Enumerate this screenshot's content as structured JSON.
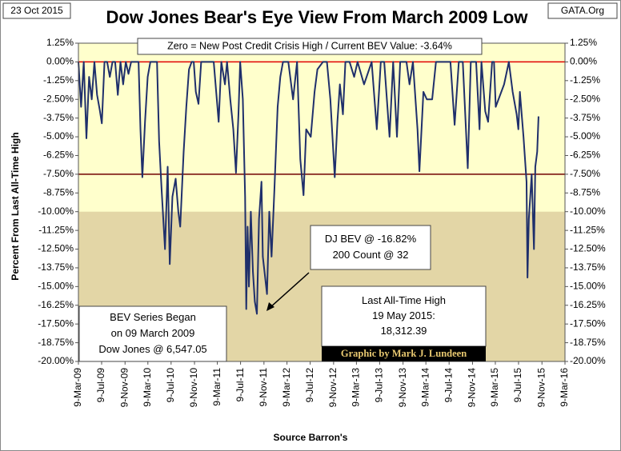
{
  "chart_data": {
    "type": "line",
    "title": "Dow Jones Bear's Eye View From March 2009 Low",
    "date_label": "23 Oct 2015",
    "site_label": "GATA.Org",
    "note": "Zero = New Post Credit Crisis High / Current BEV Value:  -3.64%",
    "callout": [
      "DJ BEV @ -16.82%",
      "200 Count @ 32"
    ],
    "start_note": [
      "BEV Series Began",
      "on 09 March 2009",
      "Dow Jones @ 6,547.05"
    ],
    "high_note": [
      "Last All-Time High",
      "19 May 2015:",
      "18,312.39"
    ],
    "credit": "Graphic by Mark J. Lundeen",
    "x_label": "Source Barron's",
    "y_label": "Percent From Last All-Time High",
    "color": "#1f2f6b",
    "reference_lines": [
      {
        "value": 0,
        "color": "#e00000"
      },
      {
        "value": -7.5,
        "color": "#700000"
      }
    ],
    "shaded_below": {
      "value": -10,
      "color": "#e3d6a6"
    },
    "background": "#ffffcc",
    "xlim": [
      "2009-03-09",
      "2016-03-09"
    ],
    "xticks": [
      {
        "value": "2009-03-09",
        "label": "9-Mar-09"
      },
      {
        "value": "2009-07-09",
        "label": "9-Jul-09"
      },
      {
        "value": "2009-11-09",
        "label": "9-Nov-09"
      },
      {
        "value": "2010-03-09",
        "label": "9-Mar-10"
      },
      {
        "value": "2010-07-09",
        "label": "9-Jul-10"
      },
      {
        "value": "2010-11-09",
        "label": "9-Nov-10"
      },
      {
        "value": "2011-03-09",
        "label": "9-Mar-11"
      },
      {
        "value": "2011-07-09",
        "label": "9-Jul-11"
      },
      {
        "value": "2011-11-09",
        "label": "9-Nov-11"
      },
      {
        "value": "2012-03-09",
        "label": "9-Mar-12"
      },
      {
        "value": "2012-07-09",
        "label": "9-Jul-12"
      },
      {
        "value": "2012-11-09",
        "label": "9-Nov-12"
      },
      {
        "value": "2013-03-09",
        "label": "9-Mar-13"
      },
      {
        "value": "2013-07-09",
        "label": "9-Jul-13"
      },
      {
        "value": "2013-11-09",
        "label": "9-Nov-13"
      },
      {
        "value": "2014-03-09",
        "label": "9-Mar-14"
      },
      {
        "value": "2014-07-09",
        "label": "9-Jul-14"
      },
      {
        "value": "2014-11-09",
        "label": "9-Nov-14"
      },
      {
        "value": "2015-03-09",
        "label": "9-Mar-15"
      },
      {
        "value": "2015-07-09",
        "label": "9-Jul-15"
      },
      {
        "value": "2015-11-09",
        "label": "9-Nov-15"
      },
      {
        "value": "2016-03-09",
        "label": "9-Mar-16"
      }
    ],
    "ylim": [
      -20,
      1.25
    ],
    "yticks": [
      {
        "value": 1.25,
        "label": "1.25%"
      },
      {
        "value": 0,
        "label": "0.00%"
      },
      {
        "value": -1.25,
        "label": "-1.25%"
      },
      {
        "value": -2.5,
        "label": "-2.50%"
      },
      {
        "value": -3.75,
        "label": "-3.75%"
      },
      {
        "value": -5,
        "label": "-5.00%"
      },
      {
        "value": -6.25,
        "label": "-6.25%"
      },
      {
        "value": -7.5,
        "label": "-7.50%"
      },
      {
        "value": -8.75,
        "label": "-8.75%"
      },
      {
        "value": -10,
        "label": "-10.00%"
      },
      {
        "value": -11.25,
        "label": "-11.25%"
      },
      {
        "value": -12.5,
        "label": "-12.50%"
      },
      {
        "value": -13.75,
        "label": "-13.75%"
      },
      {
        "value": -15,
        "label": "-15.00%"
      },
      {
        "value": -16.25,
        "label": "-16.25%"
      },
      {
        "value": -17.5,
        "label": "-17.50%"
      },
      {
        "value": -18.75,
        "label": "-18.75%"
      },
      {
        "value": -20,
        "label": "-20.00%"
      }
    ],
    "x": [
      "2009-03-09",
      "2009-03-23",
      "2009-04-06",
      "2009-04-20",
      "2009-05-04",
      "2009-05-18",
      "2009-06-01",
      "2009-06-15",
      "2009-06-29",
      "2009-07-10",
      "2009-07-24",
      "2009-08-07",
      "2009-08-21",
      "2009-09-04",
      "2009-09-18",
      "2009-10-02",
      "2009-10-16",
      "2009-10-30",
      "2009-11-13",
      "2009-11-27",
      "2009-12-11",
      "2010-01-04",
      "2010-01-19",
      "2010-01-29",
      "2010-02-08",
      "2010-02-22",
      "2010-03-08",
      "2010-03-22",
      "2010-04-09",
      "2010-04-26",
      "2010-05-07",
      "2010-05-20",
      "2010-06-07",
      "2010-06-21",
      "2010-07-02",
      "2010-07-16",
      "2010-08-02",
      "2010-08-16",
      "2010-08-26",
      "2010-09-13",
      "2010-09-27",
      "2010-10-11",
      "2010-10-25",
      "2010-11-05",
      "2010-11-16",
      "2010-11-30",
      "2010-12-14",
      "2011-01-03",
      "2011-01-18",
      "2011-02-01",
      "2011-02-18",
      "2011-03-16",
      "2011-03-30",
      "2011-04-18",
      "2011-04-29",
      "2011-05-16",
      "2011-06-01",
      "2011-06-15",
      "2011-06-28",
      "2011-07-07",
      "2011-07-21",
      "2011-08-02",
      "2011-08-08",
      "2011-08-15",
      "2011-08-22",
      "2011-09-01",
      "2011-09-12",
      "2011-09-22",
      "2011-10-03",
      "2011-10-14",
      "2011-10-27",
      "2011-11-03",
      "2011-11-25",
      "2011-12-07",
      "2011-12-19",
      "2012-01-03",
      "2012-01-20",
      "2012-02-03",
      "2012-02-17",
      "2012-03-16",
      "2012-04-10",
      "2012-05-01",
      "2012-05-18",
      "2012-06-04",
      "2012-06-18",
      "2012-07-12",
      "2012-08-01",
      "2012-08-16",
      "2012-09-14",
      "2012-10-05",
      "2012-10-23",
      "2012-11-15",
      "2012-11-29",
      "2012-12-12",
      "2012-12-28",
      "2013-01-10",
      "2013-02-01",
      "2013-02-25",
      "2013-03-15",
      "2013-04-18",
      "2013-05-28",
      "2013-06-24",
      "2013-07-15",
      "2013-08-02",
      "2013-08-30",
      "2013-09-18",
      "2013-10-08",
      "2013-10-25",
      "2013-11-27",
      "2013-12-13",
      "2013-12-31",
      "2014-01-24",
      "2014-02-03",
      "2014-02-24",
      "2014-03-14",
      "2014-04-11",
      "2014-05-01",
      "2014-06-09",
      "2014-07-16",
      "2014-08-07",
      "2014-08-29",
      "2014-09-19",
      "2014-10-15",
      "2014-10-31",
      "2014-11-28",
      "2014-12-16",
      "2014-12-26",
      "2015-01-15",
      "2015-01-30",
      "2015-02-20",
      "2015-03-02",
      "2015-03-11",
      "2015-04-24",
      "2015-05-19",
      "2015-06-08",
      "2015-06-29",
      "2015-07-08",
      "2015-07-16",
      "2015-08-04",
      "2015-08-20",
      "2015-08-25",
      "2015-09-01",
      "2015-09-16",
      "2015-09-28",
      "2015-10-05",
      "2015-10-15",
      "2015-10-22"
    ],
    "values": [
      0,
      -3,
      0,
      -5.1,
      -1,
      -2.5,
      0,
      -2.2,
      -3.2,
      -4.1,
      0,
      0,
      -1,
      0,
      0,
      -2.2,
      0,
      -1.5,
      0,
      -0.8,
      0,
      0,
      0,
      -4.5,
      -7.7,
      -4,
      -1,
      0,
      0,
      0,
      -5.3,
      -8.5,
      -12.5,
      -7,
      -13.5,
      -9,
      -7.8,
      -10,
      -11,
      -6,
      -3,
      -0.5,
      0,
      0,
      -2,
      -2.8,
      0,
      0,
      0,
      0,
      0,
      -4,
      0,
      -1.5,
      0,
      -2.5,
      -4.5,
      -7.4,
      -3.5,
      0,
      -2.5,
      -9,
      -16.5,
      -11,
      -15,
      -10,
      -14,
      -16,
      -16.82,
      -10.5,
      -8,
      -13,
      -15.5,
      -10,
      -13,
      -8.5,
      -3,
      -1,
      0,
      0,
      -2.5,
      0,
      -6.5,
      -8.9,
      -4.5,
      -5,
      -2,
      -0.5,
      0,
      0,
      -2.5,
      -7.7,
      -4,
      -1.5,
      -3.5,
      0,
      0,
      -1,
      0,
      -1.5,
      0,
      -4.5,
      0,
      0,
      -5,
      0,
      -5,
      0,
      0,
      -1.5,
      0,
      -4.5,
      -7.3,
      -2,
      -2.5,
      -2.5,
      0,
      0,
      0,
      -4.2,
      0,
      0,
      -7.1,
      0,
      0,
      -4.5,
      0,
      -3.3,
      -4,
      0,
      0,
      -3,
      -1.5,
      0,
      -2,
      -3.5,
      -4.5,
      -2,
      -5,
      -8,
      -14.4,
      -10.5,
      -7.5,
      -12.5,
      -7,
      -6,
      -3.64
    ]
  }
}
